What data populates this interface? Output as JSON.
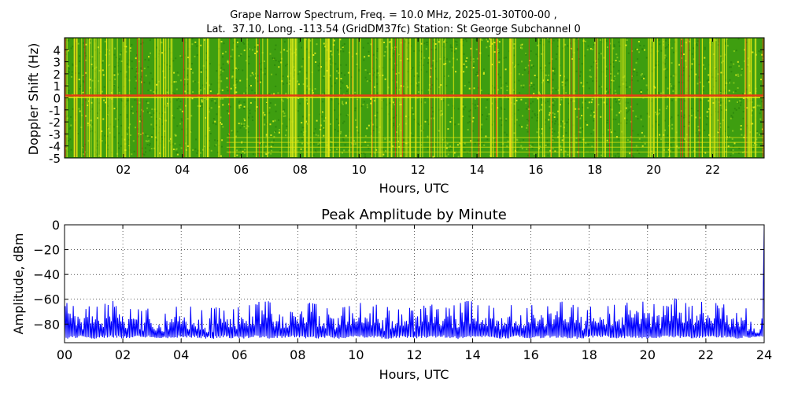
{
  "chart_data": [
    {
      "type": "heatmap",
      "title_line1": "Grape Narrow Spectrum, Freq. = 10.0 MHz, 2025-01-30T00-00 ,",
      "title_line2": "Lat.  37.10, Long. -113.54 (GridDM37fc) Station: St George Subchannel 0",
      "xlabel": "Hours, UTC",
      "ylabel": "Doppler Shift (Hz)",
      "xlim": [
        0,
        23.75
      ],
      "ylim": [
        -5,
        5
      ],
      "x_ticks": [
        2,
        4,
        6,
        8,
        10,
        12,
        14,
        16,
        18,
        20,
        22
      ],
      "x_tick_labels": [
        "02",
        "04",
        "06",
        "08",
        "10",
        "12",
        "14",
        "16",
        "18",
        "20",
        "22"
      ],
      "y_ticks": [
        4,
        3,
        2,
        1,
        0,
        -1,
        -2,
        -3,
        -4,
        -5
      ],
      "y_tick_labels": [
        "4",
        "3",
        "2",
        "1",
        "0",
        "-1",
        "-2",
        "-3",
        "-4",
        "-5"
      ],
      "strong_line_doppler_hz": 0.2,
      "colors": {
        "background": "#3e9e10",
        "mid": "#cfe51d",
        "high": "#e8e810",
        "peak": "#e33a14"
      }
    },
    {
      "type": "line",
      "title": "Peak Amplitude by Minute",
      "xlabel": "Hours, UTC",
      "ylabel": "Amplitude, dBm",
      "xlim": [
        0,
        24
      ],
      "ylim": [
        -95,
        0
      ],
      "grid": true,
      "x_ticks": [
        0,
        2,
        4,
        6,
        8,
        10,
        12,
        14,
        16,
        18,
        20,
        22,
        24
      ],
      "x_tick_labels": [
        "00",
        "02",
        "04",
        "06",
        "08",
        "10",
        "12",
        "14",
        "16",
        "18",
        "20",
        "22",
        "24"
      ],
      "y_ticks": [
        0,
        -20,
        -40,
        -60,
        -80
      ],
      "y_tick_labels": [
        "0",
        "−20",
        "−40",
        "−60",
        "−80"
      ],
      "series": [
        {
          "color": "#0000ff",
          "x": [
            0,
            0.5,
            1,
            1.5,
            1.75,
            2,
            2.5,
            3,
            3.5,
            4,
            4.5,
            5,
            5.5,
            6,
            6.5,
            6.9,
            7,
            7.5,
            8,
            8.5,
            9,
            9.5,
            10,
            10.5,
            11,
            11.5,
            12,
            12.5,
            13,
            13.5,
            14,
            14.5,
            15,
            15.5,
            16,
            16.5,
            17,
            17.5,
            18,
            18.5,
            19,
            19.5,
            20,
            20.5,
            21,
            21.5,
            22,
            22.5,
            23,
            23.5,
            23.95,
            24
          ],
          "y_min": [
            -92,
            -91,
            -92,
            -91,
            -91,
            -92,
            -91,
            -91,
            -92,
            -91,
            -91,
            -92,
            -91,
            -92,
            -91,
            -91,
            -92,
            -91,
            -91,
            -92,
            -91,
            -92,
            -91,
            -91,
            -92,
            -91,
            -92,
            -91,
            -91,
            -92,
            -91,
            -91,
            -92,
            -91,
            -92,
            -91,
            -91,
            -92,
            -91,
            -91,
            -92,
            -91,
            -92,
            -91,
            -91,
            -92,
            -91,
            -91,
            -92,
            -91,
            -91,
            -91
          ],
          "y_max": [
            -66,
            -70,
            -68,
            -67,
            -61,
            -67,
            -70,
            -69,
            -72,
            -67,
            -71,
            -71,
            -69,
            -69,
            -66,
            -63,
            -65,
            -68,
            -64,
            -66,
            -68,
            -69,
            -64,
            -67,
            -70,
            -68,
            -70,
            -67,
            -71,
            -67,
            -64,
            -69,
            -69,
            -68,
            -68,
            -66,
            -64,
            -69,
            -70,
            -66,
            -69,
            -63,
            -66,
            -69,
            -62,
            -68,
            -65,
            -68,
            -66,
            -71,
            -80,
            0
          ]
        }
      ]
    }
  ]
}
